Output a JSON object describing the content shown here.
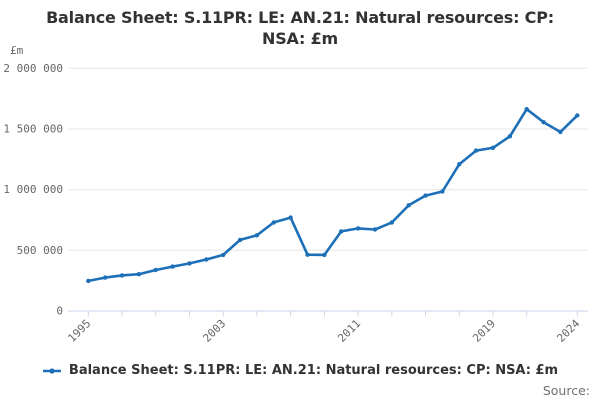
{
  "title": {
    "line1": "Balance Sheet: S.11PR: LE: AN.21: Natural resources: CP:",
    "line2": "NSA: £m"
  },
  "y_axis": {
    "unit": "£m",
    "min": 0,
    "max": 2000000,
    "ticks": [
      {
        "value": 0,
        "label": "0"
      },
      {
        "value": 500000,
        "label": "500 000"
      },
      {
        "value": 1000000,
        "label": "1 000 000"
      },
      {
        "value": 1500000,
        "label": "1 500 000"
      },
      {
        "value": 2000000,
        "label": "2 000 000"
      }
    ]
  },
  "x_axis": {
    "tick_years": [
      1995,
      1997,
      1999,
      2001,
      2003,
      2005,
      2007,
      2009,
      2011,
      2013,
      2015,
      2017,
      2019,
      2021,
      2024
    ],
    "labels": [
      {
        "year": 1995,
        "label": "1995"
      },
      {
        "year": 2003,
        "label": "2003"
      },
      {
        "year": 2011,
        "label": "2011"
      },
      {
        "year": 2019,
        "label": "2019"
      },
      {
        "year": 2024,
        "label": "2024"
      }
    ]
  },
  "legend": {
    "label": "Balance Sheet: S.11PR: LE: AN.21: Natural resources: CP: NSA: £m"
  },
  "source": {
    "label": "Source:"
  },
  "colors": {
    "series": "#1d70b8",
    "grid": "#e6e6e6",
    "axis": "#ccd6eb",
    "axis_text": "#666666",
    "title_text": "#333333"
  },
  "chart_data": {
    "type": "line",
    "title": "Balance Sheet: S.11PR: LE: AN.21: Natural resources: CP: NSA: £m",
    "xlabel": "",
    "ylabel": "£m",
    "ylim": [
      0,
      2000000
    ],
    "grid": true,
    "legend_position": "bottom",
    "x": [
      1995,
      1996,
      1997,
      1998,
      1999,
      2000,
      2001,
      2002,
      2003,
      2004,
      2005,
      2006,
      2007,
      2008,
      2009,
      2010,
      2011,
      2012,
      2013,
      2014,
      2015,
      2016,
      2017,
      2018,
      2019,
      2020,
      2021,
      2022,
      2023,
      2024
    ],
    "series": [
      {
        "name": "Balance Sheet: S.11PR: LE: AN.21: Natural resources: CP: NSA: £m",
        "values": [
          248000,
          275000,
          293000,
          303000,
          338000,
          366000,
          392000,
          424000,
          462000,
          586000,
          624000,
          730000,
          770000,
          464000,
          462000,
          656000,
          681000,
          672000,
          729000,
          871000,
          951000,
          985000,
          1210000,
          1322000,
          1345000,
          1440000,
          1663000,
          1556000,
          1475000,
          1612000
        ]
      }
    ]
  }
}
